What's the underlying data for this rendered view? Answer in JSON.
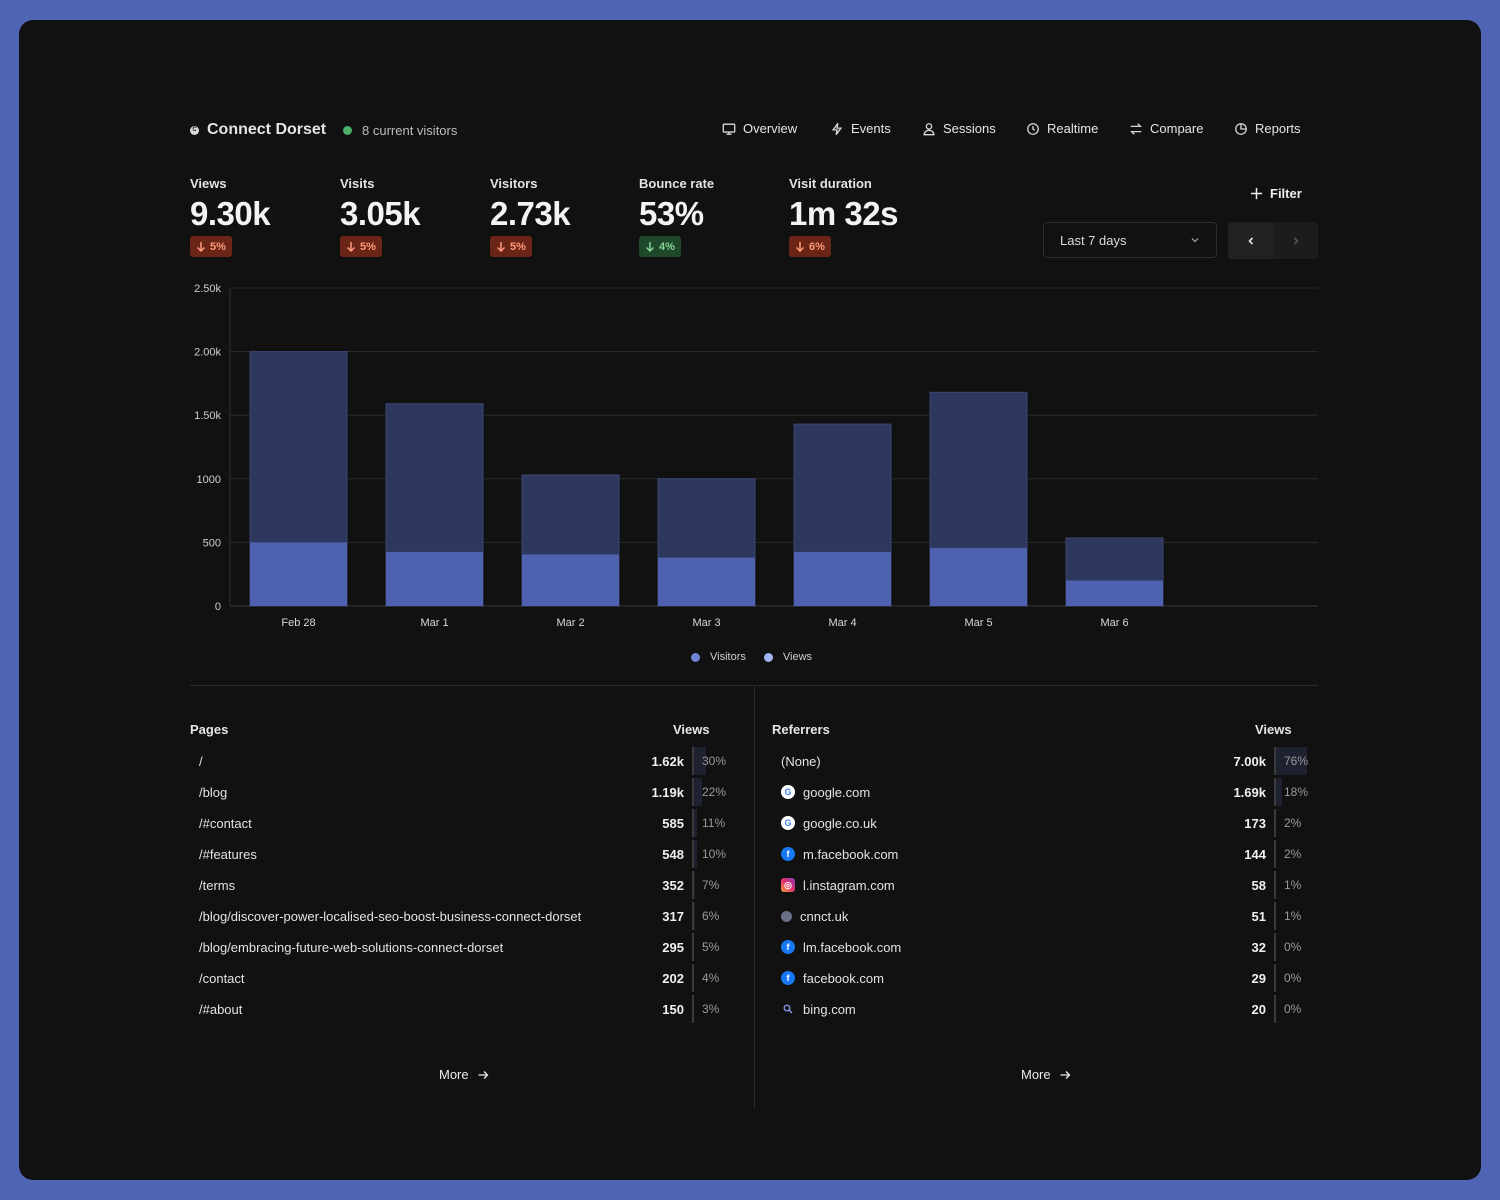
{
  "header": {
    "site_logo": "C",
    "site_name": "Connect Dorset",
    "visitors_text": "8 current visitors",
    "nav": [
      {
        "label": "Overview",
        "icon": "monitor-icon"
      },
      {
        "label": "Events",
        "icon": "bolt-icon"
      },
      {
        "label": "Sessions",
        "icon": "user-icon"
      },
      {
        "label": "Realtime",
        "icon": "clock-icon"
      },
      {
        "label": "Compare",
        "icon": "swap-icon"
      },
      {
        "label": "Reports",
        "icon": "pie-icon"
      }
    ]
  },
  "metrics": [
    {
      "label": "Views",
      "value": "9.30k",
      "change": "5%",
      "trend": "down",
      "status": "bad"
    },
    {
      "label": "Visits",
      "value": "3.05k",
      "change": "5%",
      "trend": "down",
      "status": "bad"
    },
    {
      "label": "Visitors",
      "value": "2.73k",
      "change": "5%",
      "trend": "down",
      "status": "bad"
    },
    {
      "label": "Bounce rate",
      "value": "53%",
      "change": "4%",
      "trend": "down",
      "status": "good"
    },
    {
      "label": "Visit duration",
      "value": "1m 32s",
      "change": "6%",
      "trend": "down",
      "status": "bad"
    }
  ],
  "controls": {
    "filter_label": "Filter",
    "date_range": "Last 7 days"
  },
  "colors": {
    "background": "#4f64b3",
    "card": "#111111",
    "views_bar": "#2e385e",
    "visitors_bar": "#4f62b0",
    "legend_visitors": "#6f84d6",
    "legend_views": "#a4b4f0",
    "badge_bad": "#6b2516",
    "badge_good": "#1f4729"
  },
  "chart_data": {
    "type": "bar",
    "categories": [
      "Feb 28",
      "Mar 1",
      "Mar 2",
      "Mar 3",
      "Mar 4",
      "Mar 5",
      "Mar 6"
    ],
    "series": [
      {
        "name": "Visitors",
        "values": [
          500,
          425,
          405,
          380,
          425,
          455,
          200
        ]
      },
      {
        "name": "Views",
        "values": [
          2000,
          1590,
          1030,
          1000,
          1430,
          1680,
          535
        ]
      }
    ],
    "y_ticks": [
      "0",
      "500",
      "1000",
      "1.50k",
      "2.00k",
      "2.50k"
    ],
    "ylim": [
      0,
      2500
    ],
    "overlay": true,
    "grid": true,
    "legend_position": "bottom-center"
  },
  "pages": {
    "title": "Pages",
    "metric": "Views",
    "more_label": "More",
    "rows": [
      {
        "name": "/",
        "count": "1.62k",
        "pct": "30%",
        "share": 0.3
      },
      {
        "name": "/blog",
        "count": "1.19k",
        "pct": "22%",
        "share": 0.22
      },
      {
        "name": "/#contact",
        "count": "585",
        "pct": "11%",
        "share": 0.11
      },
      {
        "name": "/#features",
        "count": "548",
        "pct": "10%",
        "share": 0.1
      },
      {
        "name": "/terms",
        "count": "352",
        "pct": "7%",
        "share": 0.07
      },
      {
        "name": "/blog/discover-power-localised-seo-boost-business-connect-dorset",
        "count": "317",
        "pct": "6%",
        "share": 0.06
      },
      {
        "name": "/blog/embracing-future-web-solutions-connect-dorset",
        "count": "295",
        "pct": "5%",
        "share": 0.05
      },
      {
        "name": "/contact",
        "count": "202",
        "pct": "4%",
        "share": 0.04
      },
      {
        "name": "/#about",
        "count": "150",
        "pct": "3%",
        "share": 0.03
      }
    ]
  },
  "referrers": {
    "title": "Referrers",
    "metric": "Views",
    "more_label": "More",
    "rows": [
      {
        "name": "(None)",
        "icon": "",
        "count": "7.00k",
        "pct": "76%",
        "share": 0.76
      },
      {
        "name": "google.com",
        "icon": "google-icon",
        "count": "1.69k",
        "pct": "18%",
        "share": 0.18
      },
      {
        "name": "google.co.uk",
        "icon": "google-icon",
        "count": "173",
        "pct": "2%",
        "share": 0.02
      },
      {
        "name": "m.facebook.com",
        "icon": "facebook-icon",
        "count": "144",
        "pct": "2%",
        "share": 0.02
      },
      {
        "name": "l.instagram.com",
        "icon": "instagram-icon",
        "count": "58",
        "pct": "1%",
        "share": 0.01
      },
      {
        "name": "cnnct.uk",
        "icon": "cnnct-icon",
        "count": "51",
        "pct": "1%",
        "share": 0.01
      },
      {
        "name": "lm.facebook.com",
        "icon": "facebook-icon",
        "count": "32",
        "pct": "0%",
        "share": 0.0
      },
      {
        "name": "facebook.com",
        "icon": "facebook-icon",
        "count": "29",
        "pct": "0%",
        "share": 0.0
      },
      {
        "name": "bing.com",
        "icon": "search-icon",
        "count": "20",
        "pct": "0%",
        "share": 0.0
      }
    ]
  }
}
